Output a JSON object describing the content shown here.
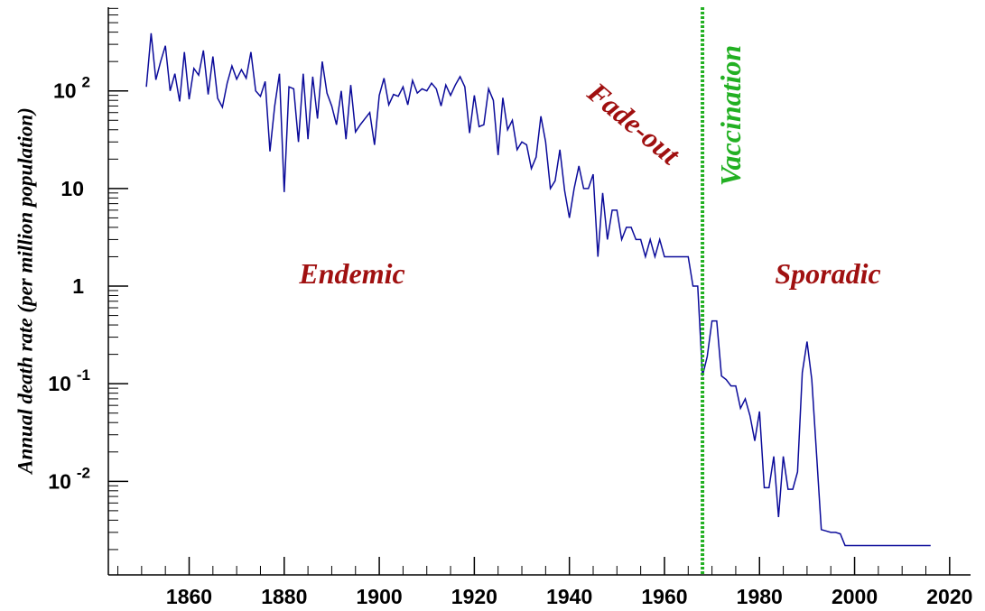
{
  "chart_data": {
    "type": "line",
    "y_label": "Annual death rate (per million population)",
    "log_y": true,
    "color": "#0b0b9a",
    "x": [
      1851,
      1852,
      1853,
      1854,
      1855,
      1856,
      1857,
      1858,
      1859,
      1860,
      1861,
      1862,
      1863,
      1864,
      1865,
      1866,
      1867,
      1868,
      1869,
      1870,
      1871,
      1872,
      1873,
      1874,
      1875,
      1876,
      1877,
      1878,
      1879,
      1880,
      1881,
      1882,
      1883,
      1884,
      1885,
      1886,
      1887,
      1888,
      1889,
      1890,
      1891,
      1892,
      1893,
      1894,
      1895,
      1896,
      1897,
      1898,
      1899,
      1900,
      1901,
      1902,
      1903,
      1904,
      1905,
      1906,
      1907,
      1908,
      1909,
      1910,
      1911,
      1912,
      1913,
      1914,
      1915,
      1916,
      1917,
      1918,
      1919,
      1920,
      1921,
      1922,
      1923,
      1924,
      1925,
      1926,
      1927,
      1928,
      1929,
      1930,
      1931,
      1932,
      1933,
      1934,
      1935,
      1936,
      1937,
      1938,
      1939,
      1940,
      1941,
      1942,
      1943,
      1944,
      1945,
      1946,
      1947,
      1948,
      1949,
      1950,
      1951,
      1952,
      1953,
      1954,
      1955,
      1956,
      1957,
      1958,
      1959,
      1960,
      1961,
      1962,
      1963,
      1964,
      1965,
      1966,
      1967,
      1968,
      1969,
      1970,
      1971,
      1972,
      1973,
      1974,
      1975,
      1976,
      1977,
      1978,
      1979,
      1980,
      1981,
      1982,
      1983,
      1984,
      1985,
      1986,
      1987,
      1988,
      1989,
      1990,
      1991,
      1992,
      1993,
      1994,
      1995,
      1996,
      1997,
      1998,
      1999,
      2000,
      2001,
      2002,
      2003,
      2004,
      2005,
      2006,
      2007,
      2008,
      2009,
      2010,
      2011,
      2012,
      2013,
      2014,
      2015,
      2016
    ],
    "values": [
      110,
      390,
      130,
      200,
      290,
      100,
      150,
      78,
      250,
      82,
      170,
      145,
      260,
      92,
      225,
      84,
      68,
      120,
      180,
      132,
      165,
      135,
      250,
      100,
      88,
      125,
      24,
      70,
      150,
      9.2,
      110,
      105,
      30,
      150,
      32,
      140,
      52,
      200,
      95,
      70,
      45,
      100,
      32,
      115,
      38,
      45,
      52,
      60,
      28,
      90,
      135,
      72,
      92,
      88,
      110,
      72,
      128,
      95,
      105,
      100,
      120,
      105,
      70,
      115,
      90,
      115,
      140,
      110,
      37,
      90,
      43,
      45,
      105,
      80,
      22,
      85,
      40,
      50,
      25,
      30,
      28,
      16,
      21,
      55,
      30,
      10,
      12,
      25,
      9.5,
      5,
      10,
      17,
      10,
      10,
      14,
      2,
      9,
      3,
      6,
      6,
      3,
      4,
      4,
      3,
      3,
      2,
      3,
      2,
      3,
      2,
      2,
      2,
      2,
      2,
      2,
      1,
      1,
      0.12,
      0.19,
      0.44,
      0.44,
      0.12,
      0.11,
      0.095,
      0.095,
      0.056,
      0.07,
      0.047,
      0.026,
      0.052,
      0.0086,
      0.0086,
      0.018,
      0.0043,
      0.018,
      0.0083,
      0.0083,
      0.0125,
      0.13,
      0.27,
      0.11,
      0.019,
      0.0032,
      0.0031,
      0.003,
      0.003,
      0.0029,
      0.0022,
      0.0022,
      0.0022,
      0.0022,
      0.0022,
      0.0022,
      0.0022,
      0.0022,
      0.0022,
      0.0022,
      0.0022,
      0.0022,
      0.0022,
      0.0022,
      0.0022,
      0.0022,
      0.0022,
      0.0022,
      0.0022
    ],
    "xlim": [
      1843,
      2024.4
    ],
    "xticks": [
      1860,
      1880,
      1900,
      1920,
      1940,
      1960,
      1980,
      2000,
      2020
    ],
    "ylim": [
      0.0011,
      720
    ],
    "yticks": [
      {
        "value": 0.01,
        "label": "10",
        "exponent": "-2"
      },
      {
        "value": 0.1,
        "label": "10",
        "exponent": "-1"
      },
      1,
      10,
      {
        "value": 100,
        "label": "10",
        "exponent": "2"
      }
    ],
    "vline": {
      "x": 1968,
      "label": "Vaccination",
      "color": "#22b022"
    },
    "annotations": [
      {
        "text": "Endemic",
        "color": "#a01010"
      },
      {
        "text": "Fade-out",
        "color": "#a01010"
      },
      {
        "text": "Sporadic",
        "color": "#a01010"
      }
    ]
  }
}
